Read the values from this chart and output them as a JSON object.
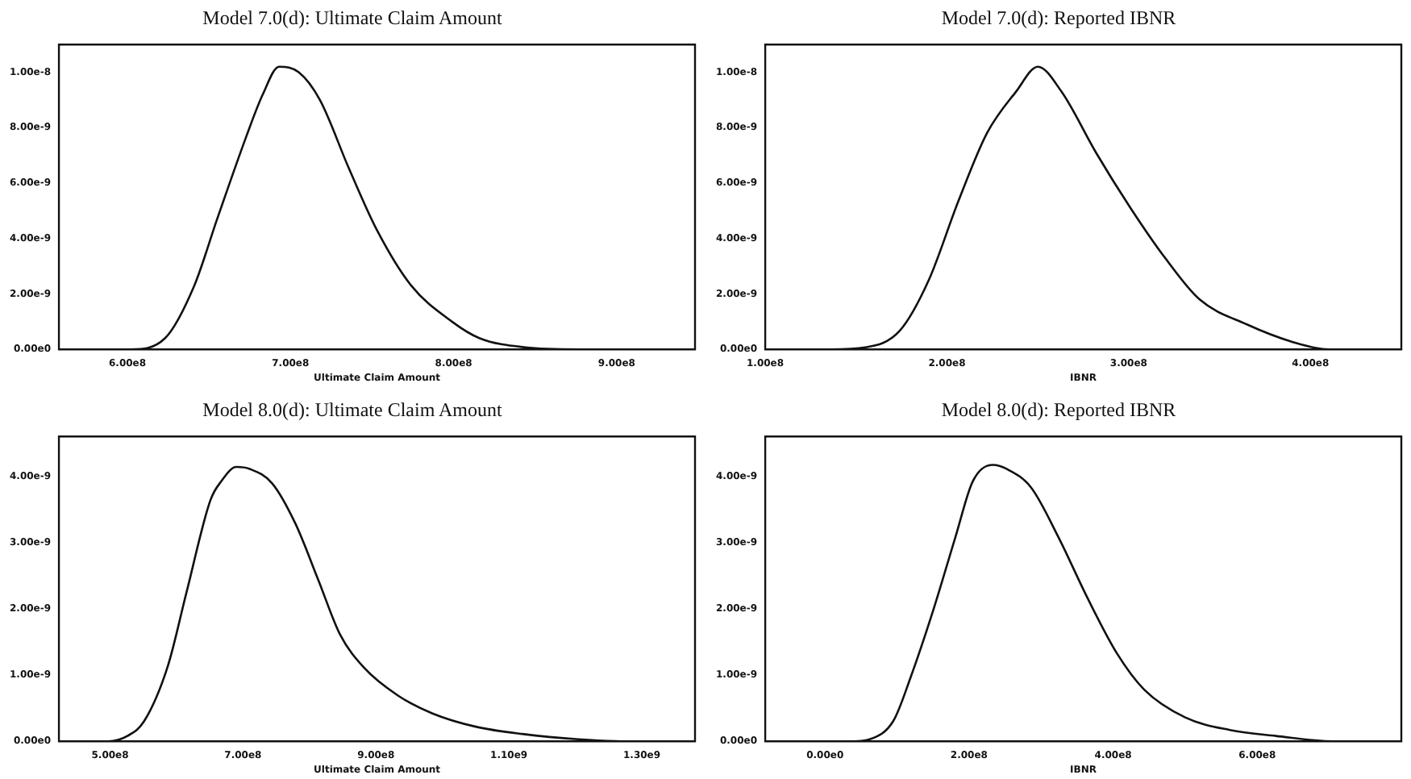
{
  "chart_data": [
    {
      "type": "line",
      "title": "Model 7.0(d): Ultimate Claim Amount",
      "xlabel": "Ultimate Claim Amount",
      "marker": "none",
      "line_style": "solid",
      "grid": false,
      "legend": false,
      "x": [
        560000000.0,
        580000000.0,
        602000000.0,
        623000000.0,
        641000000.0,
        655000000.0,
        673000000.0,
        683000000.0,
        693000000.0,
        705000000.0,
        718000000.0,
        736000000.0,
        753000000.0,
        774000000.0,
        799000000.0,
        816000000.0,
        844000000.0,
        876000000.0,
        940000000.0
      ],
      "series": [
        {
          "color": "#111111",
          "values": [
            0,
            0,
            0,
            4e-10,
            2.3e-09,
            4.7e-09,
            7.7e-09,
            9.2e-09,
            1.02e-08,
            1e-08,
            9e-09,
            6.5e-09,
            4.3e-09,
            2.3e-09,
            1e-09,
            4e-10,
            7e-11,
            0,
            0
          ]
        }
      ],
      "xlim": [
        558000000.0,
        948000000.0
      ],
      "xticks": [
        {
          "value": 600000000.0,
          "label": "6.00e8"
        },
        {
          "value": 700000000.0,
          "label": "7.00e8"
        },
        {
          "value": 800000000.0,
          "label": "8.00e8"
        },
        {
          "value": 900000000.0,
          "label": "9.00e8"
        }
      ],
      "ylim": [
        0,
        1.1e-08
      ],
      "yticks": [
        {
          "value": 0,
          "label": "0.00e0"
        },
        {
          "value": 2e-09,
          "label": "2.00e-9"
        },
        {
          "value": 4e-09,
          "label": "4.00e-9"
        },
        {
          "value": 6e-09,
          "label": "6.00e-9"
        },
        {
          "value": 8e-09,
          "label": "8.00e-9"
        },
        {
          "value": 1e-08,
          "label": "1.00e-8"
        }
      ]
    },
    {
      "type": "line",
      "title": "Model 7.0(d): Reported IBNR",
      "xlabel": "IBNR",
      "marker": "none",
      "line_style": "solid",
      "grid": false,
      "legend": false,
      "x": [
        100000000.0,
        136000000.0,
        155000000.0,
        174000000.0,
        190000000.0,
        206000000.0,
        222000000.0,
        238000000.0,
        250000000.0,
        263000000.0,
        282000000.0,
        301000000.0,
        320000000.0,
        339000000.0,
        365000000.0,
        390000000.0,
        410000000.0,
        448000000.0
      ],
      "series": [
        {
          "color": "#111111",
          "values": [
            0,
            0,
            7e-11,
            6.7e-10,
            2.5e-09,
            5.3e-09,
            7.8e-09,
            9.3e-09,
            1.02e-08,
            9.3e-09,
            7.1e-09,
            5.1e-09,
            3.3e-09,
            1.8e-09,
            9e-10,
            2.7e-10,
            0,
            0
          ]
        }
      ],
      "xlim": [
        100000000.0,
        450000000.0
      ],
      "xticks": [
        {
          "value": 100000000.0,
          "label": "1.00e8"
        },
        {
          "value": 200000000.0,
          "label": "2.00e8"
        },
        {
          "value": 300000000.0,
          "label": "3.00e8"
        },
        {
          "value": 400000000.0,
          "label": "4.00e8"
        }
      ],
      "ylim": [
        0,
        1.1e-08
      ],
      "yticks": [
        {
          "value": 0,
          "label": "0.00e0"
        },
        {
          "value": 2e-09,
          "label": "2.00e-9"
        },
        {
          "value": 4e-09,
          "label": "4.00e-9"
        },
        {
          "value": 6e-09,
          "label": "6.00e-9"
        },
        {
          "value": 8e-09,
          "label": "8.00e-9"
        },
        {
          "value": 1e-08,
          "label": "1.00e-8"
        }
      ]
    },
    {
      "type": "line",
      "title": "Model 8.0(d): Ultimate Claim Amount",
      "xlabel": "Ultimate Claim Amount",
      "marker": "none",
      "line_style": "solid",
      "grid": false,
      "legend": false,
      "x": [
        430000000.0,
        497000000.0,
        526000000.0,
        551000000.0,
        587000000.0,
        615000000.0,
        651000000.0,
        667000000.0,
        690000000.0,
        710000000.0,
        744000000.0,
        779000000.0,
        813000000.0,
        846000000.0,
        882000000.0,
        933000000.0,
        985000000.0,
        1050000000.0,
        1120000000.0,
        1205000000.0,
        1280000000.0,
        1370000000.0
      ],
      "series": [
        {
          "color": "#111111",
          "values": [
            0,
            0,
            8e-11,
            3e-10,
            1.14e-09,
            2.25e-09,
            3.64e-09,
            3.92e-09,
            4.14e-09,
            4.11e-09,
            3.89e-09,
            3.28e-09,
            2.44e-09,
            1.61e-09,
            1.11e-09,
            6.9e-10,
            4.2e-10,
            2.2e-10,
            1.1e-10,
            3e-11,
            0,
            0
          ]
        }
      ],
      "xlim": [
        423000000.0,
        1380000000.0
      ],
      "xticks": [
        {
          "value": 500000000.0,
          "label": "5.00e8"
        },
        {
          "value": 700000000.0,
          "label": "7.00e8"
        },
        {
          "value": 900000000.0,
          "label": "9.00e8"
        },
        {
          "value": 1100000000.0,
          "label": "1.10e9"
        },
        {
          "value": 1300000000.0,
          "label": "1.30e9"
        }
      ],
      "ylim": [
        0,
        4.6e-09
      ],
      "yticks": [
        {
          "value": 0,
          "label": "0.00e0"
        },
        {
          "value": 1e-09,
          "label": "1.00e-9"
        },
        {
          "value": 2e-09,
          "label": "2.00e-9"
        },
        {
          "value": 3e-09,
          "label": "3.00e-9"
        },
        {
          "value": 4e-09,
          "label": "4.00e-9"
        }
      ]
    },
    {
      "type": "line",
      "title": "Model 8.0(d): Reported IBNR",
      "xlabel": "IBNR",
      "marker": "none",
      "line_style": "solid",
      "grid": false,
      "legend": false,
      "x": [
        -80000000.0,
        40000000.0,
        62000000.0,
        95000000.0,
        119000000.0,
        150000000.0,
        181000000.0,
        205000000.0,
        233000000.0,
        252000000.0,
        286000000.0,
        324000000.0,
        364000000.0,
        405000000.0,
        443000000.0,
        500000000.0,
        562000000.0,
        626000000.0,
        705000000.0,
        790000000.0
      ],
      "series": [
        {
          "color": "#111111",
          "values": [
            0,
            0,
            3e-11,
            3.1e-10,
            9.7e-10,
            1.97e-09,
            3.08e-09,
            3.92e-09,
            4.17e-09,
            4.11e-09,
            3.83e-09,
            3.08e-09,
            2.17e-09,
            1.33e-09,
            7.8e-10,
            3.6e-10,
            1.7e-10,
            8e-11,
            0,
            0
          ]
        }
      ],
      "xlim": [
        -83000000.0,
        800000000.0
      ],
      "xticks": [
        {
          "value": 0,
          "label": "0.00e0"
        },
        {
          "value": 200000000.0,
          "label": "2.00e8"
        },
        {
          "value": 400000000.0,
          "label": "4.00e8"
        },
        {
          "value": 600000000.0,
          "label": "6.00e8"
        }
      ],
      "ylim": [
        0,
        4.6e-09
      ],
      "yticks": [
        {
          "value": 0,
          "label": "0.00e0"
        },
        {
          "value": 1e-09,
          "label": "1.00e-9"
        },
        {
          "value": 2e-09,
          "label": "2.00e-9"
        },
        {
          "value": 3e-09,
          "label": "3.00e-9"
        },
        {
          "value": 4e-09,
          "label": "4.00e-9"
        }
      ]
    }
  ]
}
